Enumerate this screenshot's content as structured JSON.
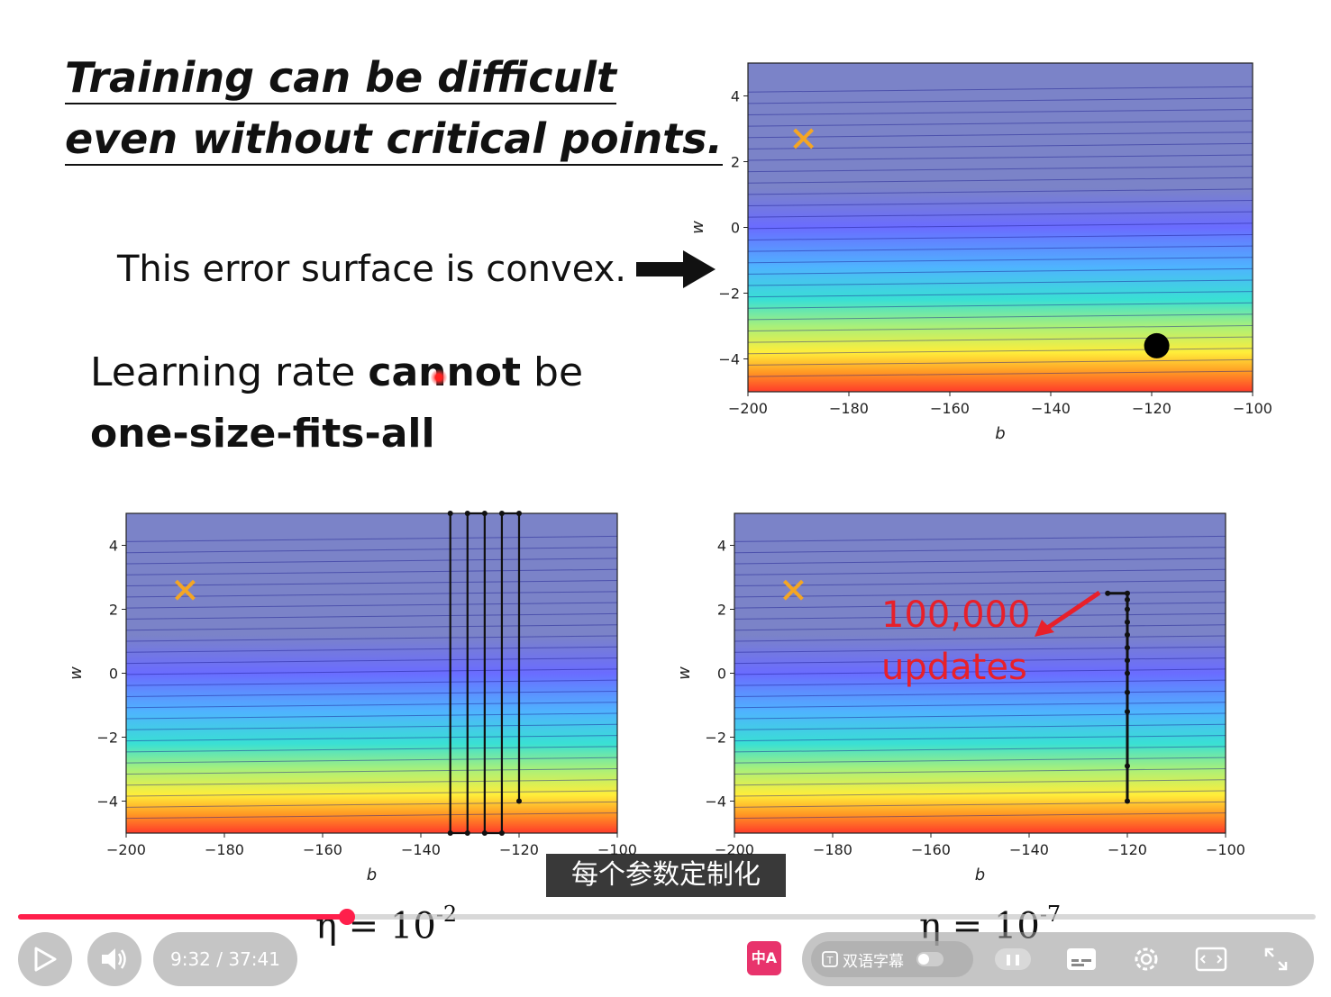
{
  "slide": {
    "title_line1": "Training can be difficult",
    "title_line2": "even without critical points.",
    "convex_text": "This error surface is convex.",
    "lr_text_a": "Learning rate ",
    "lr_text_b": "cannot",
    "lr_text_c": " be",
    "lr_text_line2": "one-size-fits-all",
    "updates_line1": "100,000",
    "updates_line2": "updates",
    "eta_left": "η = 10",
    "eta_left_exp": "-2",
    "eta_right": "η = 10",
    "eta_right_exp": "-7"
  },
  "colors": {
    "accent": "#ff1f4b",
    "annotation_red": "#e8202a",
    "target_marker": "#f5a623"
  },
  "chart_data": [
    {
      "type": "heatmap",
      "description_of_surface": "contour",
      "xlabel": "b",
      "ylabel": "w",
      "xlim": [
        -200,
        -100
      ],
      "ylim": [
        -5,
        5
      ],
      "xticks": [
        -200,
        -180,
        -160,
        -140,
        -120,
        -100
      ],
      "yticks": [
        -4,
        -2,
        0,
        2,
        4
      ],
      "markers": [
        {
          "kind": "x",
          "b": -189,
          "w": 2.7
        },
        {
          "kind": "dot",
          "b": -119,
          "w": -3.6
        }
      ]
    },
    {
      "type": "line",
      "xlabel": "b",
      "ylabel": "w",
      "xlim": [
        -200,
        -100
      ],
      "ylim": [
        -5,
        5
      ],
      "xticks": [
        -200,
        -180,
        -160,
        -140,
        -120,
        -100
      ],
      "yticks": [
        -4,
        -2,
        0,
        2,
        4
      ],
      "markers": [
        {
          "kind": "x",
          "b": -188,
          "w": 2.6
        }
      ],
      "path_b": [
        -120,
        -120,
        -123.5,
        -123.5,
        -127,
        -127,
        -130.5,
        -130.5,
        -134,
        -134
      ],
      "path_w": [
        -4,
        5,
        5,
        -5,
        -5,
        5,
        5,
        -5,
        -5,
        5
      ]
    },
    {
      "type": "line",
      "xlabel": "b",
      "ylabel": "w",
      "xlim": [
        -200,
        -100
      ],
      "ylim": [
        -5,
        5
      ],
      "xticks": [
        -200,
        -180,
        -160,
        -140,
        -120,
        -100
      ],
      "yticks": [
        -4,
        -2,
        0,
        2,
        4
      ],
      "markers": [
        {
          "kind": "x",
          "b": -188,
          "w": 2.6
        }
      ],
      "path_b": [
        -120,
        -120,
        -120,
        -120,
        -120,
        -120,
        -120,
        -120,
        -120,
        -120,
        -120,
        -120,
        -124
      ],
      "path_w": [
        -4,
        -2.9,
        -1.2,
        -0.6,
        0,
        0.4,
        0.8,
        1.2,
        1.6,
        2.0,
        2.3,
        2.5,
        2.5
      ]
    }
  ],
  "subtitle": "每个参数定制化",
  "player": {
    "time": "9:32 / 37:41",
    "progress": 0.2537,
    "translate_icon_label": "中A",
    "bilingual_label": "双语字幕"
  }
}
